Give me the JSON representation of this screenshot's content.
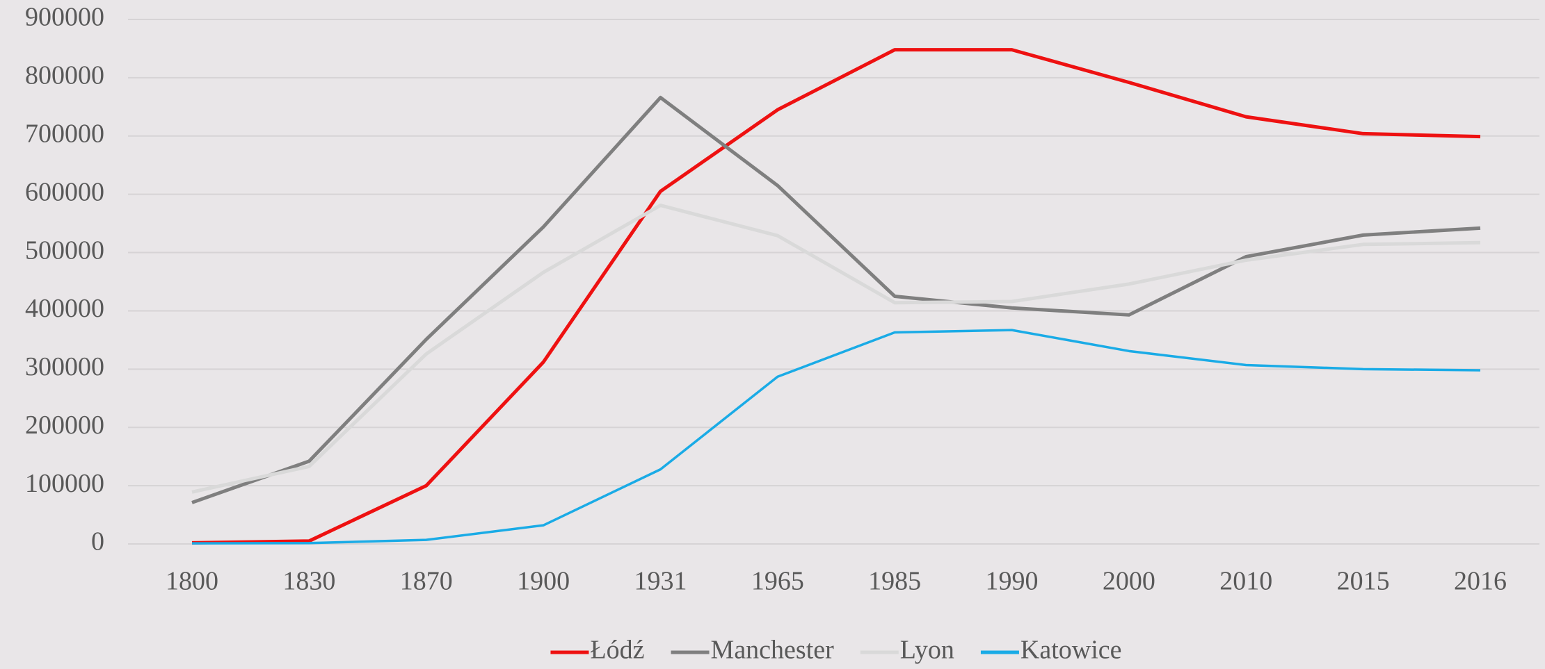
{
  "chart_data": {
    "type": "line",
    "categories": [
      "1800",
      "1830",
      "1870",
      "1900",
      "1931",
      "1965",
      "1985",
      "1990",
      "2000",
      "2010",
      "2015",
      "2016"
    ],
    "series": [
      {
        "name": "Łódź",
        "color": "#ee1111",
        "values": [
          2000,
          5000,
          100000,
          312000,
          605000,
          745000,
          848000,
          848000,
          792000,
          733000,
          704000,
          699000
        ]
      },
      {
        "name": "Manchester",
        "color": "#7f7f7f",
        "values": [
          71000,
          142000,
          351000,
          544000,
          766000,
          615000,
          425000,
          405000,
          393000,
          493000,
          530000,
          542000
        ]
      },
      {
        "name": "Lyon",
        "color": "#d9d9d9",
        "values": [
          89000,
          133000,
          326000,
          466000,
          581000,
          529000,
          414000,
          416000,
          446000,
          487000,
          514000,
          517000
        ]
      },
      {
        "name": "Katowice",
        "color": "#1aabe6",
        "values": [
          1000,
          1500,
          7000,
          32000,
          128000,
          287000,
          363000,
          367000,
          331000,
          307000,
          300000,
          298000
        ]
      }
    ],
    "ylim": [
      0,
      900000
    ],
    "yticks": [
      0,
      100000,
      200000,
      300000,
      400000,
      500000,
      600000,
      700000,
      800000,
      900000
    ],
    "grid": true,
    "legend": "bottom"
  }
}
